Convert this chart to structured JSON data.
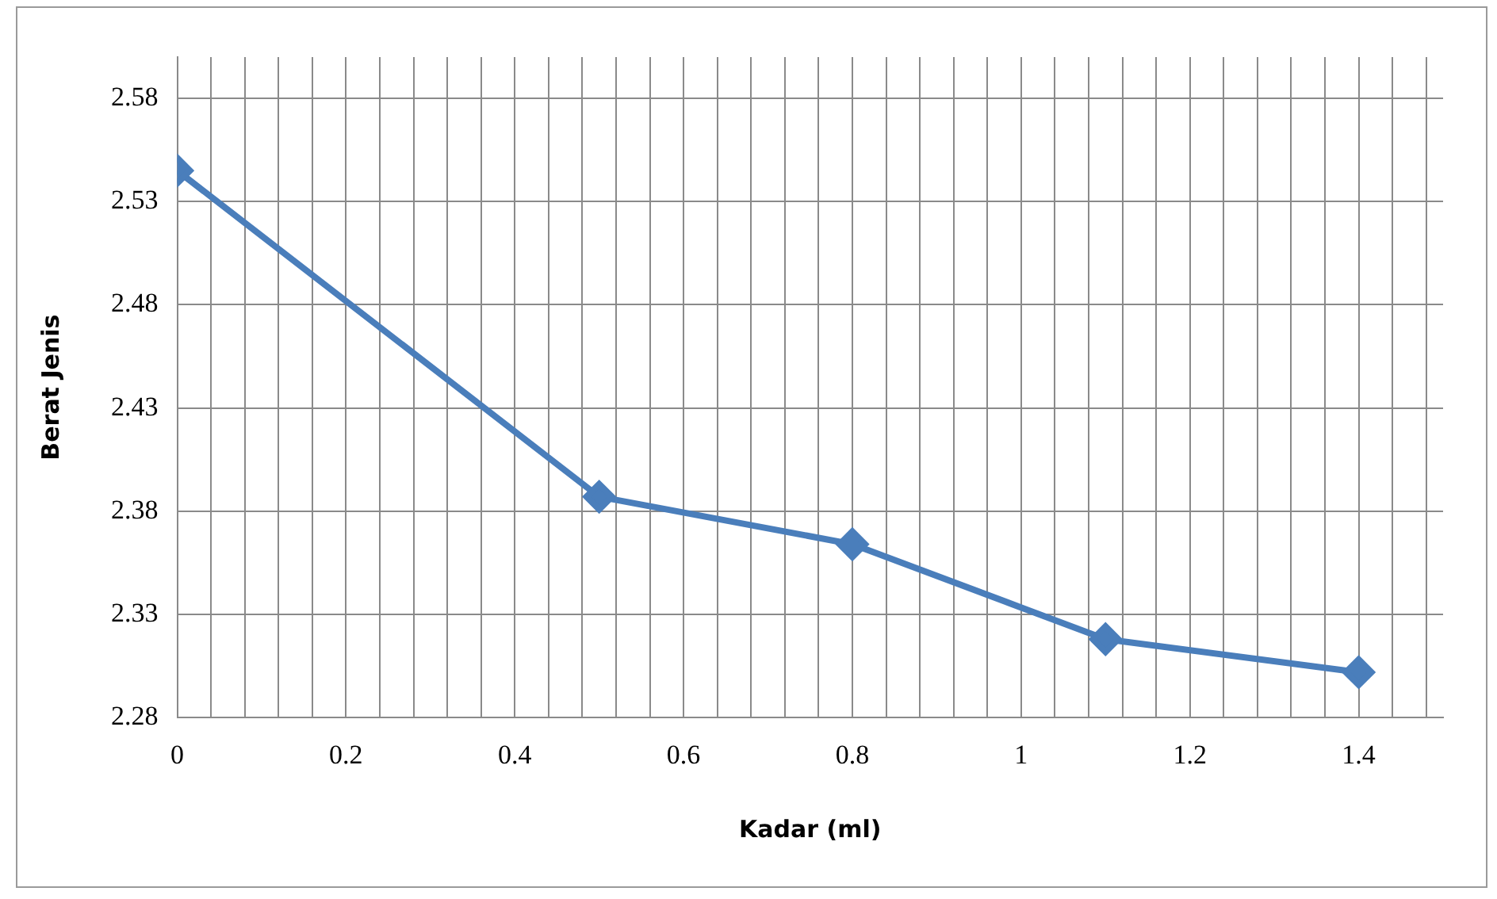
{
  "chart_data": {
    "type": "line",
    "xlabel": "Kadar (ml)",
    "ylabel": "Berat Jenis",
    "x": [
      0,
      0.5,
      0.8,
      1.1,
      1.4
    ],
    "series": [
      {
        "color": "#4a7ebb",
        "values": [
          2.545,
          2.387,
          2.364,
          2.318,
          2.302
        ]
      }
    ],
    "xlim": [
      0,
      1.5
    ],
    "ylim": [
      2.28,
      2.6
    ],
    "xticks": [
      0,
      {
        "value": 0.04,
        "label": null
      },
      {
        "value": 0.08,
        "label": null
      },
      {
        "value": 0.12,
        "label": null
      },
      {
        "value": 0.16,
        "label": null
      },
      0.2,
      {
        "value": 0.24,
        "label": null
      },
      {
        "value": 0.28,
        "label": null
      },
      {
        "value": 0.32,
        "label": null
      },
      {
        "value": 0.36,
        "label": null
      },
      0.4,
      {
        "value": 0.44,
        "label": null
      },
      {
        "value": 0.48,
        "label": null
      },
      {
        "value": 0.52,
        "label": null
      },
      {
        "value": 0.56,
        "label": null
      },
      0.6,
      {
        "value": 0.64,
        "label": null
      },
      {
        "value": 0.68,
        "label": null
      },
      {
        "value": 0.72,
        "label": null
      },
      {
        "value": 0.76,
        "label": null
      },
      0.8,
      {
        "value": 0.84,
        "label": null
      },
      {
        "value": 0.88,
        "label": null
      },
      {
        "value": 0.92,
        "label": null
      },
      {
        "value": 0.96,
        "label": null
      },
      1,
      {
        "value": 1.04,
        "label": null
      },
      {
        "value": 1.08,
        "label": null
      },
      {
        "value": 1.12,
        "label": null
      },
      {
        "value": 1.16,
        "label": null
      },
      1.2,
      {
        "value": 1.24,
        "label": null
      },
      {
        "value": 1.28,
        "label": null
      },
      {
        "value": 1.32,
        "label": null
      },
      {
        "value": 1.36,
        "label": null
      },
      1.4,
      {
        "value": 1.44,
        "label": null
      },
      {
        "value": 1.48,
        "label": null
      }
    ],
    "yticks": [
      2.28,
      2.33,
      2.38,
      2.43,
      2.48,
      2.53,
      2.58
    ],
    "grid": true,
    "legend": false,
    "marker": "diamond",
    "line_style": "solid"
  }
}
